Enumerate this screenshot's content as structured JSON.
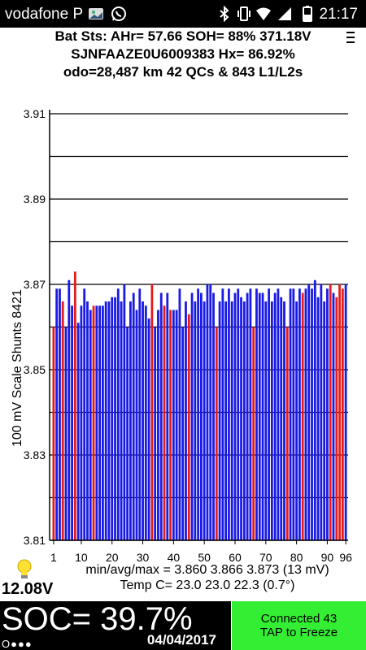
{
  "status_bar": {
    "carrier": "vodafone P",
    "time": "21:17",
    "icons": [
      "gallery-icon",
      "whatsapp-icon",
      "bluetooth-icon",
      "vibrate-icon",
      "wifi-icon",
      "signal-icon",
      "battery-icon"
    ]
  },
  "header": {
    "line1": "Bat Sts: AHr= 57.66 SOH= 88% 371.18V",
    "line2": "SJNFAAZE0U6009383    Hx= 86.92%",
    "line3": "odo=28,487 km 42 QCs & 843 L1/L2s",
    "menu_icon": "menu-icon"
  },
  "chart_data": {
    "type": "bar",
    "ylabel": "100 mV Scale   Shunts 8421",
    "ylim": [
      3.81,
      3.91
    ],
    "y_ticks": [
      "3.91",
      "3.89",
      "3.87",
      "3.85",
      "3.83",
      "3.81"
    ],
    "x_ticks": [
      "1",
      "10",
      "20",
      "30",
      "40",
      "50",
      "60",
      "70",
      "80",
      "90",
      "96"
    ],
    "colors": {
      "normal": "#1a1ae6",
      "shunted": "#e61a1a"
    },
    "cells": [
      1,
      2,
      3,
      4,
      5,
      6,
      7,
      8,
      9,
      10,
      11,
      12,
      13,
      14,
      15,
      16,
      17,
      18,
      19,
      20,
      21,
      22,
      23,
      24,
      25,
      26,
      27,
      28,
      29,
      30,
      31,
      32,
      33,
      34,
      35,
      36,
      37,
      38,
      39,
      40,
      41,
      42,
      43,
      44,
      45,
      46,
      47,
      48,
      49,
      50,
      51,
      52,
      53,
      54,
      55,
      56,
      57,
      58,
      59,
      60,
      61,
      62,
      63,
      64,
      65,
      66,
      67,
      68,
      69,
      70,
      71,
      72,
      73,
      74,
      75,
      76,
      77,
      78,
      79,
      80,
      81,
      82,
      83,
      84,
      85,
      86,
      87,
      88,
      89,
      90,
      91,
      92,
      93,
      94,
      95,
      96
    ],
    "values": [
      3.86,
      3.869,
      3.869,
      3.866,
      3.86,
      3.871,
      3.865,
      3.873,
      3.861,
      3.865,
      3.869,
      3.866,
      3.864,
      3.865,
      3.865,
      3.865,
      3.865,
      3.866,
      3.866,
      3.867,
      3.867,
      3.869,
      3.866,
      3.87,
      3.86,
      3.866,
      3.868,
      3.864,
      3.869,
      3.866,
      3.865,
      3.862,
      3.87,
      3.86,
      3.864,
      3.868,
      3.865,
      3.868,
      3.864,
      3.864,
      3.864,
      3.869,
      3.86,
      3.866,
      3.863,
      3.868,
      3.866,
      3.869,
      3.868,
      3.866,
      3.87,
      3.87,
      3.868,
      3.86,
      3.866,
      3.869,
      3.866,
      3.869,
      3.866,
      3.868,
      3.869,
      3.867,
      3.866,
      3.868,
      3.869,
      3.86,
      3.869,
      3.868,
      3.868,
      3.866,
      3.869,
      3.866,
      3.868,
      3.869,
      3.867,
      3.866,
      3.86,
      3.869,
      3.869,
      3.866,
      3.869,
      3.868,
      3.869,
      3.87,
      3.869,
      3.871,
      3.867,
      3.87,
      3.866,
      3.869,
      3.87,
      3.868,
      3.867,
      3.87,
      3.869,
      3.87
    ],
    "shunted": [
      1,
      4,
      8,
      14,
      33,
      37,
      39,
      45,
      54,
      66,
      77,
      82,
      91,
      93,
      94,
      95
    ]
  },
  "stats": {
    "line1": "min/avg/max = 3.860 3.866 3.873  (13 mV)",
    "line2": "Temp C= 23.0  23.0  22.3  (0.7°)"
  },
  "accessory": {
    "bulb_icon": "lightbulb-icon",
    "voltage": "12.08V"
  },
  "bottom": {
    "soc": "SOC= 39.7%",
    "dots": "O●●●",
    "date": "04/04/2017",
    "conn_line1": "Connected 43",
    "conn_line2": "TAP to Freeze"
  }
}
